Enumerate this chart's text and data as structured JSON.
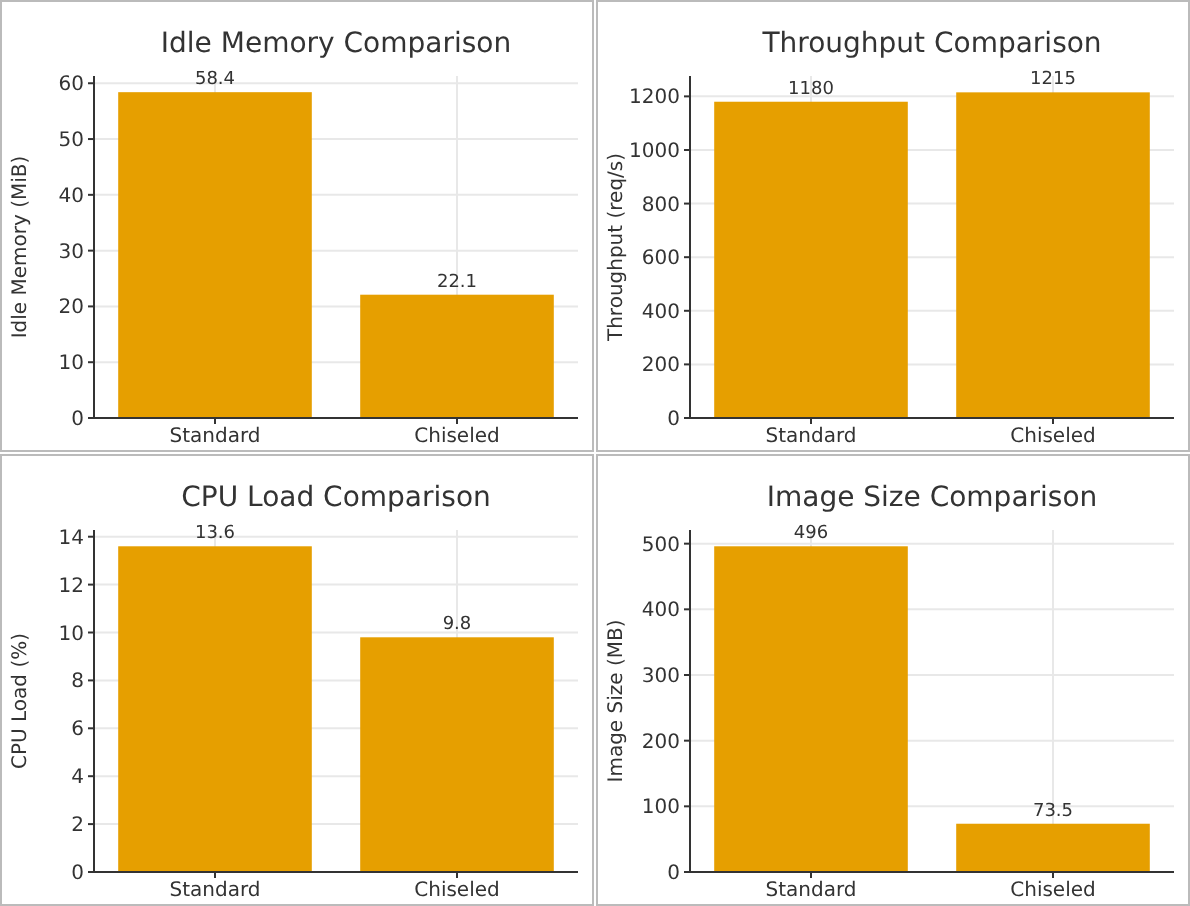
{
  "chart_data": [
    {
      "type": "bar",
      "title": "Idle Memory Comparison",
      "ylabel": "Idle Memory (MiB)",
      "categories": [
        "Standard",
        "Chiseled"
      ],
      "values": [
        58.4,
        22.1
      ],
      "color": "#e69f00",
      "ylim": [
        0,
        61.3
      ],
      "yticks": [
        0,
        10,
        20,
        30,
        40,
        50,
        60
      ],
      "grid": true,
      "data_labels": true
    },
    {
      "type": "bar",
      "title": "Throughput Comparison",
      "ylabel": "Throughput (req/s)",
      "categories": [
        "Standard",
        "Chiseled"
      ],
      "values": [
        1180,
        1215
      ],
      "color": "#e69f00",
      "ylim": [
        0,
        1276
      ],
      "yticks": [
        0,
        200,
        400,
        600,
        800,
        1000,
        1200
      ],
      "grid": true,
      "data_labels": true
    },
    {
      "type": "bar",
      "title": "CPU Load Comparison",
      "ylabel": "CPU Load (%)",
      "categories": [
        "Standard",
        "Chiseled"
      ],
      "values": [
        13.6,
        9.8
      ],
      "color": "#e69f00",
      "ylim": [
        0,
        14.28
      ],
      "yticks": [
        0,
        2,
        4,
        6,
        8,
        10,
        12,
        14
      ],
      "grid": true,
      "data_labels": true
    },
    {
      "type": "bar",
      "title": "Image Size Comparison",
      "ylabel": "Image Size (MB)",
      "categories": [
        "Standard",
        "Chiseled"
      ],
      "values": [
        496,
        73.5
      ],
      "color": "#e69f00",
      "ylim": [
        0,
        520.8
      ],
      "yticks": [
        0,
        100,
        200,
        300,
        400,
        500
      ],
      "grid": true,
      "data_labels": true
    }
  ]
}
